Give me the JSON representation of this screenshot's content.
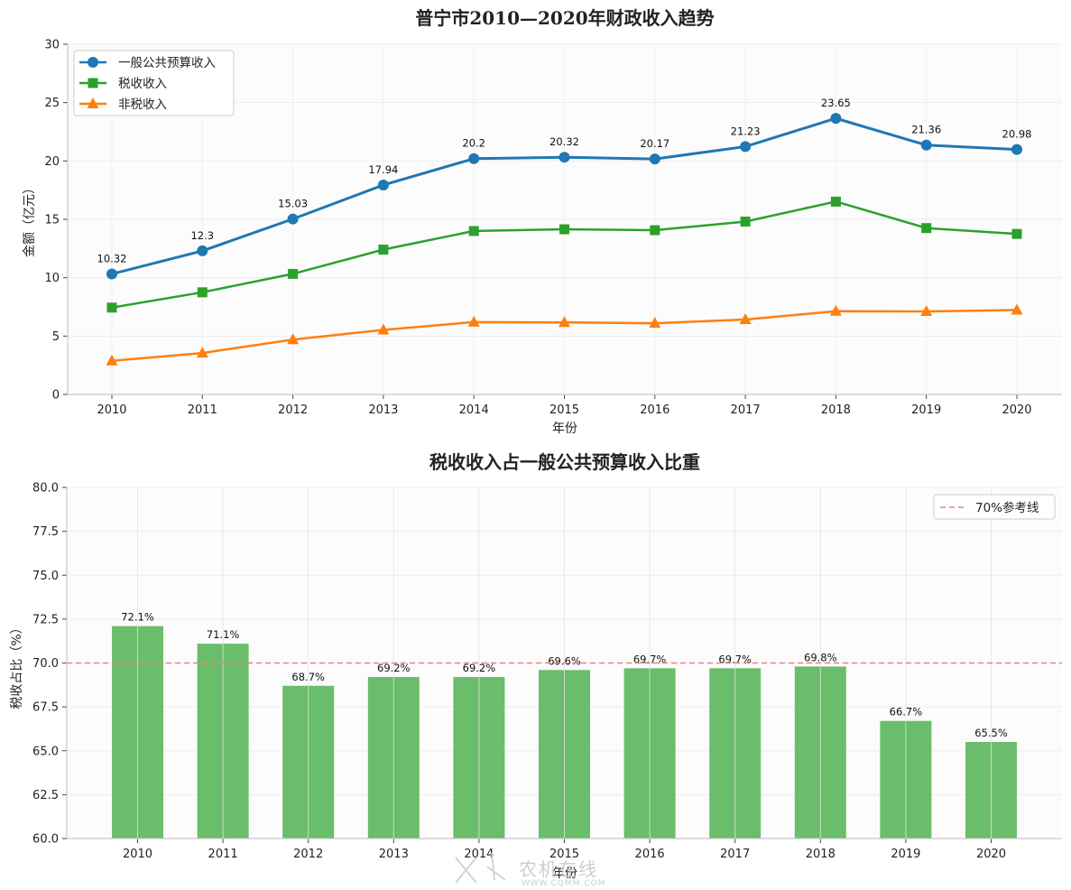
{
  "colors": {
    "budget": "#1f77b4",
    "tax": "#2ca02c",
    "nontax": "#ff7f0e",
    "bar": "#6abd6a",
    "refline": "#f08080"
  },
  "chart_data": [
    {
      "type": "line",
      "title": "普宁市2010—2020年财政收入趋势",
      "xlabel": "年份",
      "ylabel": "金额（亿元）",
      "ylim": [
        0,
        30
      ],
      "yticks": [
        "0",
        "5",
        "10",
        "15",
        "20",
        "25",
        "30"
      ],
      "categories": [
        "2010",
        "2011",
        "2012",
        "2013",
        "2014",
        "2015",
        "2016",
        "2017",
        "2018",
        "2019",
        "2020"
      ],
      "grid": true,
      "legend_position": "top-left",
      "series": [
        {
          "name": "一般公共预算收入",
          "marker": "circle",
          "values": [
            10.32,
            12.3,
            15.03,
            17.94,
            20.2,
            20.32,
            20.17,
            21.23,
            23.65,
            21.36,
            20.98
          ],
          "labels": [
            "10.32",
            "12.3",
            "15.03",
            "17.94",
            "20.2",
            "20.32",
            "20.17",
            "21.23",
            "23.65",
            "21.36",
            "20.98"
          ]
        },
        {
          "name": "税收收入",
          "marker": "square",
          "values": [
            7.44,
            8.75,
            10.33,
            12.41,
            14.0,
            14.15,
            14.07,
            14.81,
            16.52,
            14.25,
            13.75
          ]
        },
        {
          "name": "非税收入",
          "marker": "triangle",
          "values": [
            2.88,
            3.55,
            4.7,
            5.53,
            6.2,
            6.17,
            6.1,
            6.42,
            7.13,
            7.11,
            7.23
          ]
        }
      ]
    },
    {
      "type": "bar",
      "title": "税收收入占一般公共预算收入比重",
      "xlabel": "年份",
      "ylabel": "税收占比（%）",
      "ylim": [
        60,
        80
      ],
      "yticks": [
        "60.0",
        "62.5",
        "65.0",
        "67.5",
        "70.0",
        "72.5",
        "75.0",
        "77.5",
        "80.0"
      ],
      "categories": [
        "2010",
        "2011",
        "2012",
        "2013",
        "2014",
        "2015",
        "2016",
        "2017",
        "2018",
        "2019",
        "2020"
      ],
      "values": [
        72.1,
        71.1,
        68.7,
        69.2,
        69.2,
        69.6,
        69.7,
        69.7,
        69.8,
        66.7,
        65.5
      ],
      "labels": [
        "72.1%",
        "71.1%",
        "68.7%",
        "69.2%",
        "69.2%",
        "69.6%",
        "69.7%",
        "69.7%",
        "69.8%",
        "66.7%",
        "65.5%"
      ],
      "grid": true,
      "legend_position": "top-right",
      "reference_line": {
        "value": 70,
        "label": "70%参考线"
      }
    }
  ],
  "watermark": {
    "text": "农机在线",
    "url": "WWW.CQMM.COM"
  }
}
